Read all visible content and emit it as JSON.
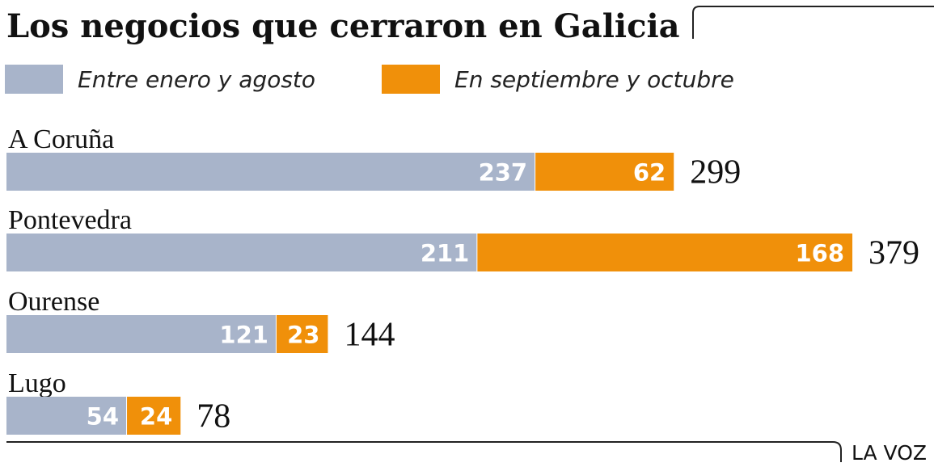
{
  "chart_data": {
    "type": "bar",
    "orientation": "horizontal",
    "stacked": true,
    "title": "Los negocios que cerraron en Galicia",
    "categories": [
      "A Coruña",
      "Pontevedra",
      "Ourense",
      "Lugo"
    ],
    "series": [
      {
        "name": "Entre enero y agosto",
        "values": [
          237,
          211,
          121,
          54
        ],
        "color": "#a8b4ca"
      },
      {
        "name": "En septiembre y octubre",
        "values": [
          62,
          168,
          23,
          24
        ],
        "color": "#f0900a"
      }
    ],
    "totals": [
      299,
      379,
      144,
      78
    ],
    "legend_position": "top",
    "grid": false
  },
  "source": "LA VOZ"
}
